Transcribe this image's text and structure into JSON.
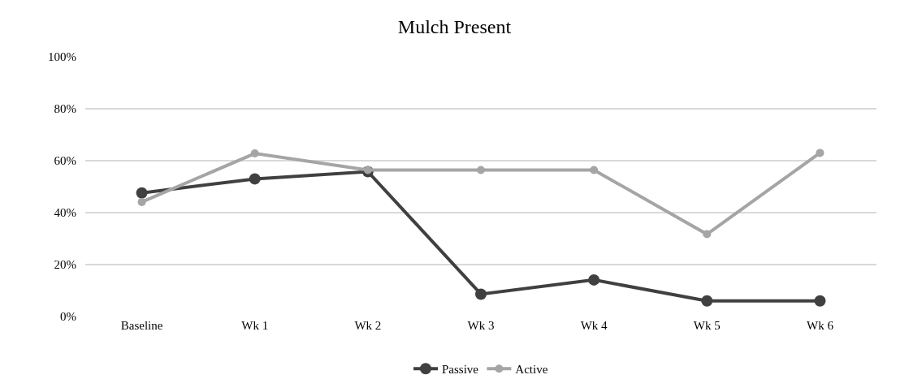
{
  "chart_data": {
    "type": "line",
    "title": "Mulch Present",
    "categories": [
      "Baseline",
      "Wk 1",
      "Wk 2",
      "Wk 3",
      "Wk 4",
      "Wk 5",
      "Wk 6"
    ],
    "series": [
      {
        "name": "Passive",
        "color": "#404040",
        "values": [
          47.6,
          53.0,
          55.8,
          8.6,
          14.1,
          6.0,
          6.0
        ]
      },
      {
        "name": "Active",
        "color": "#a5a5a5",
        "values": [
          44.1,
          62.8,
          56.4,
          56.4,
          56.4,
          31.7,
          63.0
        ]
      }
    ],
    "ylim": [
      0,
      100
    ],
    "yticks": [
      {
        "value": 0,
        "label": "0%"
      },
      {
        "value": 20,
        "label": "20%"
      },
      {
        "value": 40,
        "label": "40%"
      },
      {
        "value": 60,
        "label": "60%"
      },
      {
        "value": 80,
        "label": "80%"
      },
      {
        "value": 100,
        "label": "100%"
      }
    ],
    "grid": "y",
    "legend": "bottom",
    "marker": "circle",
    "line_style": "solid"
  }
}
